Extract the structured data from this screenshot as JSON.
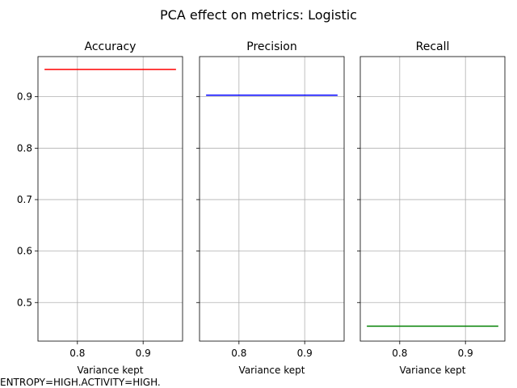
{
  "figure_title": "PCA effect on metrics: Logistic",
  "footer_text": "ENTROPY=HIGH.ACTIVITY=HIGH.",
  "chart_data": [
    {
      "type": "line",
      "title": "Accuracy",
      "xlabel": "Variance kept",
      "ylabel": "",
      "x": [
        0.75,
        0.95
      ],
      "y": [
        0.953,
        0.953
      ],
      "color": "#ff0000",
      "xlim": [
        0.74,
        0.96
      ],
      "ylim": [
        0.425,
        0.978
      ],
      "xticks": [
        "0.8",
        "0.9"
      ],
      "yticks": [
        "0.5",
        "0.6",
        "0.7",
        "0.8",
        "0.9"
      ],
      "grid": true
    },
    {
      "type": "line",
      "title": "Precision",
      "xlabel": "Variance kept",
      "ylabel": "",
      "x": [
        0.75,
        0.95
      ],
      "y": [
        0.903,
        0.903
      ],
      "color": "#0000ff",
      "xlim": [
        0.74,
        0.96
      ],
      "ylim": [
        0.425,
        0.978
      ],
      "xticks": [
        "0.8",
        "0.9"
      ],
      "yticks": [
        "0.5",
        "0.6",
        "0.7",
        "0.8",
        "0.9"
      ],
      "grid": true
    },
    {
      "type": "line",
      "title": "Recall",
      "xlabel": "Variance kept",
      "ylabel": "",
      "x": [
        0.75,
        0.95
      ],
      "y": [
        0.454,
        0.454
      ],
      "color": "#008000",
      "xlim": [
        0.74,
        0.96
      ],
      "ylim": [
        0.425,
        0.978
      ],
      "xticks": [
        "0.8",
        "0.9"
      ],
      "yticks": [
        "0.5",
        "0.6",
        "0.7",
        "0.8",
        "0.9"
      ],
      "grid": true
    }
  ]
}
